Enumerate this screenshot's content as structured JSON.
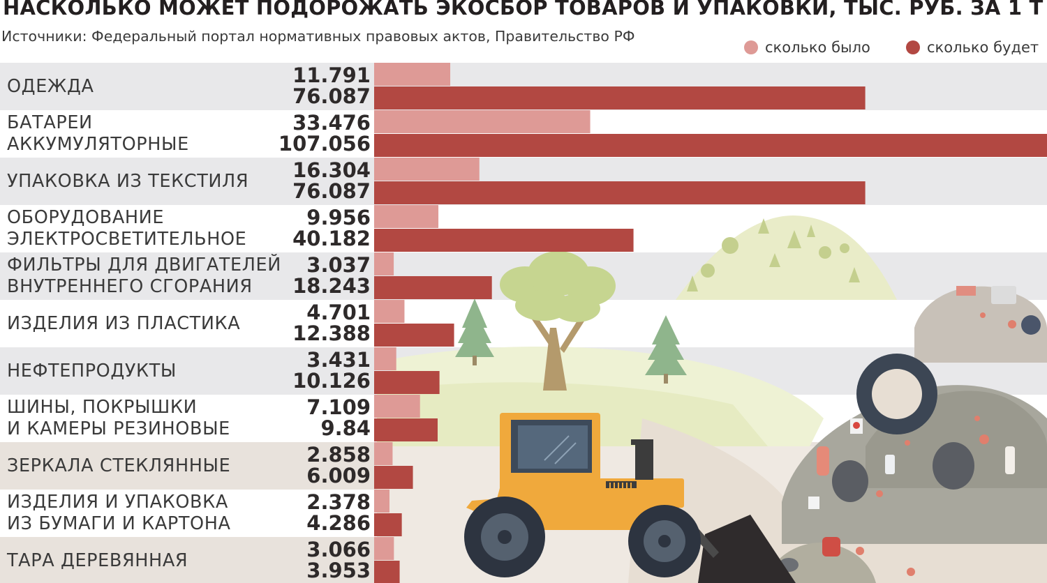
{
  "title": "НАСКОЛЬКО МОЖЕТ ПОДОРОЖАТЬ ЭКОСБОР ТОВАРОВ И УПАКОВКИ, ТЫС. РУБ. ЗА 1 Т",
  "source": "Источники: Федеральный портал нормативных правовых актов, Правительство РФ",
  "colors": {
    "previous": "#de9a96",
    "new": "#b24842",
    "row_band": "#e8e8ea",
    "row_band_bottom": "#e8e2dc"
  },
  "chart_data": {
    "type": "bar",
    "orientation": "horizontal",
    "title": "НАСКОЛЬКО МОЖЕТ ПОДОРОЖАТЬ ЭКОСБОР ТОВАРОВ И УПАКОВКИ, ТЫС. РУБ. ЗА 1 Т",
    "legend_position": "top-right",
    "grid": false,
    "xlim": [
      0,
      107.056
    ],
    "series": [
      {
        "name": "сколько было",
        "color": "#de9a96",
        "values": [
          11.791,
          33.476,
          16.304,
          9.956,
          3.037,
          4.701,
          3.431,
          7.109,
          2.858,
          2.378,
          3.066
        ],
        "labels": [
          "11.791",
          "33.476",
          "16.304",
          "9.956",
          "3.037",
          "4.701",
          "3.431",
          "7.109",
          "2.858",
          "2.378",
          "3.066"
        ]
      },
      {
        "name": "сколько будет",
        "color": "#b24842",
        "values": [
          76.087,
          107.056,
          76.087,
          40.182,
          18.243,
          12.388,
          10.126,
          9.84,
          6.009,
          4.286,
          3.953
        ],
        "labels": [
          "76.087",
          "107.056",
          "76.087",
          "40.182",
          "18.243",
          "12.388",
          "10.126",
          "9.84",
          "6.009",
          "4.286",
          "3.953"
        ]
      }
    ],
    "categories": [
      [
        "ОДЕЖДА"
      ],
      [
        "БАТАРЕИ",
        "АККУМУЛЯТОРНЫЕ"
      ],
      [
        "УПАКОВКА ИЗ ТЕКСТИЛЯ"
      ],
      [
        "ОБОРУДОВАНИЕ",
        "ЭЛЕКТРОСВЕТИТЕЛЬНОЕ"
      ],
      [
        "ФИЛЬТРЫ ДЛЯ ДВИГАТЕЛЕЙ",
        "ВНУТРЕННЕГО СГОРАНИЯ"
      ],
      [
        "ИЗДЕЛИЯ ИЗ ПЛАСТИКА"
      ],
      [
        "НЕФТЕПРОДУКТЫ"
      ],
      [
        "ШИНЫ, ПОКРЫШКИ",
        "И КАМЕРЫ РЕЗИНОВЫЕ"
      ],
      [
        "ЗЕРКАЛА СТЕКЛЯННЫЕ"
      ],
      [
        "ИЗДЕЛИЯ И УПАКОВКА",
        "ИЗ БУМАГИ И КАРТОНА"
      ],
      [
        "ТАРА ДЕРЕВЯННАЯ"
      ]
    ]
  }
}
